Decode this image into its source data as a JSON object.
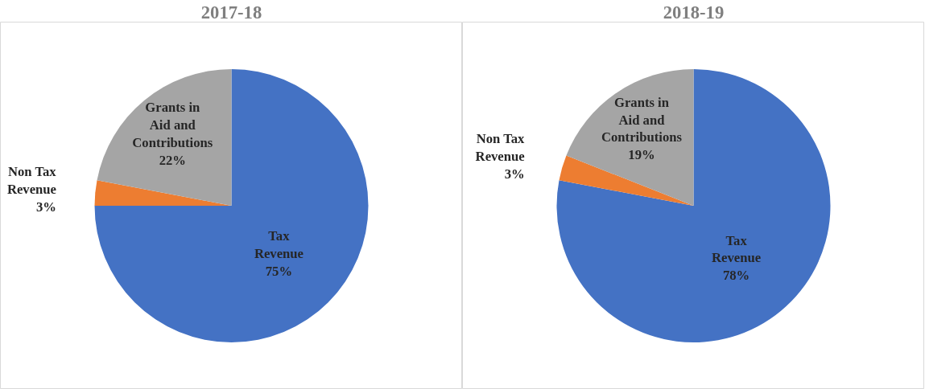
{
  "chart_data": [
    {
      "type": "pie",
      "title": "2017-18",
      "categories": [
        "Tax Revenue",
        "Non Tax Revenue",
        "Grants in Aid and Contributions"
      ],
      "values": [
        75,
        3,
        22
      ],
      "value_labels": [
        "75%",
        "3%",
        "22%"
      ],
      "colors": [
        "#4472c4",
        "#ed7d31",
        "#a5a5a5"
      ],
      "legend": false
    },
    {
      "type": "pie",
      "title": "2018-19",
      "categories": [
        "Tax Revenue",
        "Non Tax Revenue",
        "Grants in Aid and Contributions"
      ],
      "values": [
        78,
        3,
        19
      ],
      "value_labels": [
        "78%",
        "3%",
        "19%"
      ],
      "colors": [
        "#4472c4",
        "#ed7d31",
        "#a5a5a5"
      ],
      "legend": false
    }
  ]
}
